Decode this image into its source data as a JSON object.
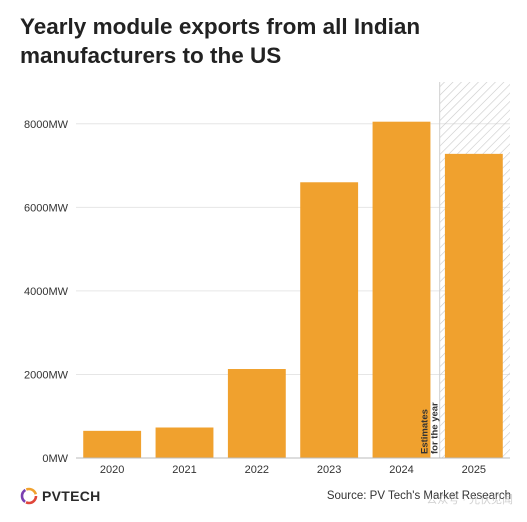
{
  "chart_data": {
    "type": "bar",
    "title": "Yearly module exports from all Indian manufacturers to the US",
    "categories": [
      "2020",
      "2021",
      "2022",
      "2023",
      "2024",
      "2025"
    ],
    "values": [
      650,
      730,
      2130,
      6600,
      8050,
      7280
    ],
    "ylim": [
      0,
      9000
    ],
    "yticks": [
      0,
      2000,
      4000,
      6000,
      8000
    ],
    "ytick_labels": [
      "0MW",
      "2000MW",
      "4000MW",
      "6000MW",
      "8000MW"
    ],
    "bar_color": "#f0a12e",
    "estimate_label": "Estimates for the year",
    "estimate_category": "2025",
    "grid": true
  },
  "footer": {
    "logo_text": "PVTECH",
    "source": "Source: PV Tech's Market Research",
    "watermark": "公众号 · 光伏见闻"
  }
}
